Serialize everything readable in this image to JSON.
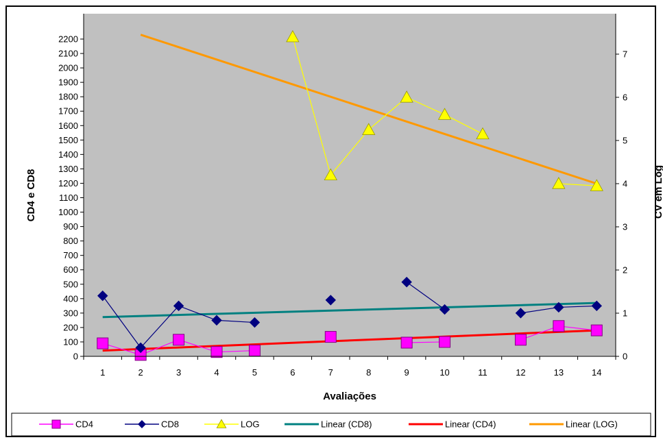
{
  "chart_data": {
    "type": "line",
    "title": "",
    "xlabel": "Avaliações",
    "ylabel_left": "CD4 e CD8",
    "ylabel_right": "CV em Log",
    "x": [
      1,
      2,
      3,
      4,
      5,
      6,
      7,
      8,
      9,
      10,
      11,
      12,
      13,
      14
    ],
    "ylim_left": [
      0,
      2200
    ],
    "yticks_left": [
      0,
      100,
      200,
      300,
      400,
      500,
      600,
      700,
      800,
      900,
      1000,
      1100,
      1200,
      1300,
      1400,
      1500,
      1600,
      1700,
      1800,
      1900,
      2000,
      2100,
      2200
    ],
    "ylim_right": [
      0,
      7
    ],
    "yticks_right": [
      0,
      1,
      2,
      3,
      4,
      5,
      6,
      7
    ],
    "grid": false,
    "legend_position": "bottom",
    "background_color": "#c0c0c0",
    "series": [
      {
        "name": "CD4",
        "axis": "left",
        "color": "#ff00ff",
        "marker": "square",
        "values": [
          90,
          10,
          115,
          30,
          40,
          null,
          135,
          null,
          95,
          100,
          null,
          115,
          210,
          180
        ]
      },
      {
        "name": "CD8",
        "axis": "left",
        "color": "#000080",
        "marker": "diamond",
        "values": [
          420,
          60,
          350,
          250,
          235,
          null,
          390,
          null,
          515,
          325,
          null,
          300,
          340,
          350
        ]
      },
      {
        "name": "LOG",
        "axis": "right",
        "color": "#ffff00",
        "marker": "triangle",
        "values": [
          null,
          null,
          null,
          null,
          null,
          7.4,
          4.2,
          5.25,
          6.0,
          5.6,
          5.15,
          null,
          4.0,
          3.95
        ]
      }
    ],
    "trendlines": [
      {
        "name": "Linear (CD8)",
        "of": "CD8",
        "axis": "left",
        "color": "#008080",
        "x": [
          1,
          14
        ],
        "values": [
          272,
          370
        ]
      },
      {
        "name": "Linear (CD4)",
        "of": "CD4",
        "axis": "left",
        "color": "#ff0000",
        "x": [
          1,
          14
        ],
        "values": [
          40,
          180
        ]
      },
      {
        "name": "Linear (LOG)",
        "of": "LOG",
        "axis": "right",
        "color": "#ff9900",
        "x": [
          2,
          14
        ],
        "values": [
          7.45,
          4.0
        ]
      }
    ],
    "legend": [
      "CD4",
      "CD8",
      "LOG",
      "Linear (CD8)",
      "Linear (CD4)",
      "Linear (LOG)"
    ]
  }
}
